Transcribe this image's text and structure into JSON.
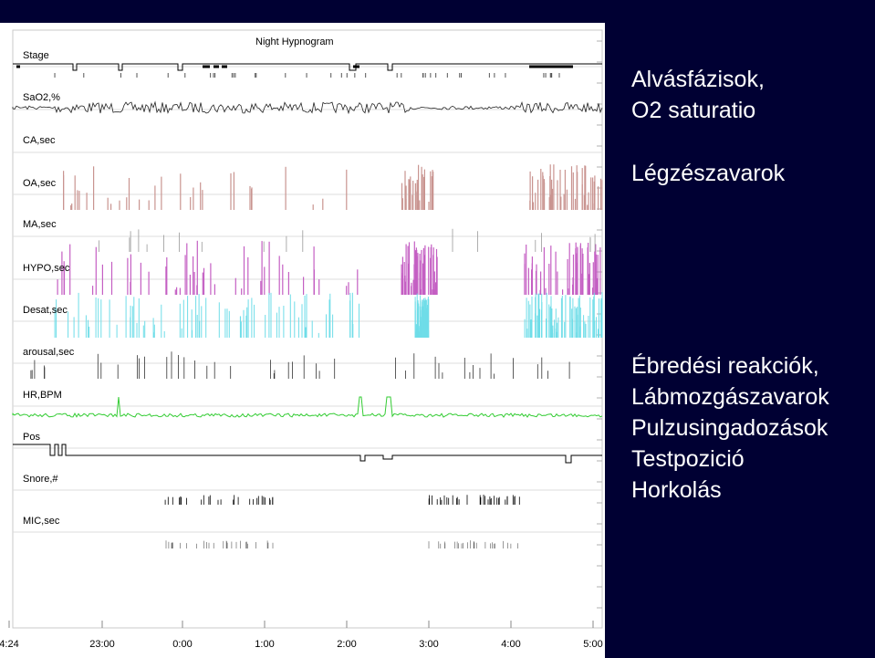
{
  "colors": {
    "background": "#000033",
    "plot_background": "#ffffff",
    "co": "#000000",
    "oa": "#c99490",
    "hypo": "#c45fc3",
    "desat": "#6fdde8",
    "hr": "#33cc33"
  },
  "chart_data": {
    "type": "line",
    "title": "Night Hypnogram",
    "channels": [
      {
        "label": "Stage"
      },
      {
        "label": "SaO2,%"
      },
      {
        "label": "CA,sec"
      },
      {
        "label": "OA,sec"
      },
      {
        "label": "MA,sec"
      },
      {
        "label": "HYPO,sec"
      },
      {
        "label": "Desat,sec"
      },
      {
        "label": "arousal,sec"
      },
      {
        "label": "HR,BPM"
      },
      {
        "label": "Pos"
      },
      {
        "label": "Snore,#"
      },
      {
        "label": "MIC,sec"
      }
    ],
    "x_ticks": [
      "4:24",
      "23:00",
      "0:00",
      "1:00",
      "2:00",
      "3:00",
      "4:00",
      "5:00"
    ]
  },
  "panel": {
    "top_lines": [
      "Alvásfázisok,",
      "O2 saturatio"
    ],
    "middle_lines": [
      "Légzészavarok"
    ],
    "bottom_lines": [
      "Ébredési reakciók,",
      "Lábmozgászavarok",
      "Pulzusingadozások",
      "Testpozició",
      "Horkolás"
    ]
  }
}
